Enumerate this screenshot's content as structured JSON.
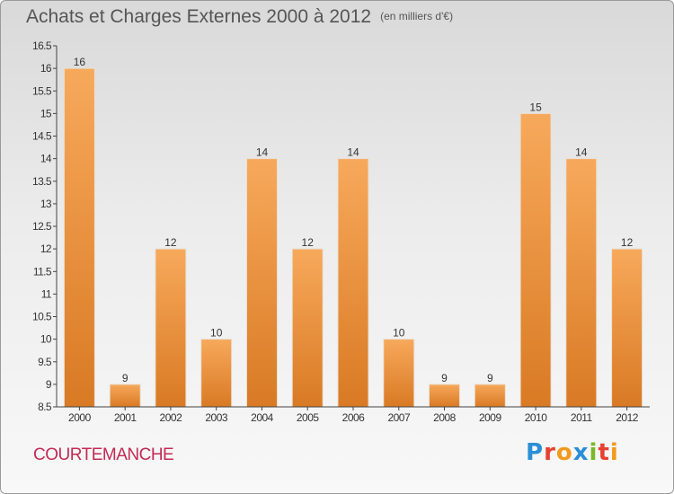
{
  "header": {
    "title": "Achats et Charges Externes 2000 à 2012",
    "unit": "(en milliers d'€)"
  },
  "footer": {
    "place": "COURTEMANCHE",
    "brand": "Proxiti",
    "brand_colors": [
      "#2a8fd6",
      "#e7412f",
      "#f29a1e",
      "#2a8fd6",
      "#7ab829",
      "#e7412f",
      "#f29a1e"
    ]
  },
  "colors": {
    "bar_light": "#f7a95b",
    "bar_dark": "#d97a24",
    "axis": "#444444",
    "label": "#333333"
  },
  "chart_data": {
    "type": "bar",
    "categories": [
      "2000",
      "2001",
      "2002",
      "2003",
      "2004",
      "2005",
      "2006",
      "2007",
      "2008",
      "2009",
      "2010",
      "2011",
      "2012"
    ],
    "values": [
      16,
      9,
      12,
      10,
      14,
      12,
      14,
      10,
      9,
      9,
      15,
      14,
      12
    ],
    "data_labels": [
      "16",
      "9",
      "12",
      "10",
      "14",
      "12",
      "14",
      "10",
      "9",
      "9",
      "15",
      "14",
      "12"
    ],
    "ylim": [
      8.5,
      16.5
    ],
    "yticks": [
      "8.5",
      "9",
      "9.5",
      "10",
      "10.5",
      "11",
      "11.5",
      "12",
      "12.5",
      "13",
      "13.5",
      "14",
      "14.5",
      "15",
      "15.5",
      "16",
      "16.5"
    ],
    "title": "Achats et Charges Externes 2000 à 2012",
    "unit": "(en milliers d'€)",
    "xlabel": "",
    "ylabel": "",
    "grid": false
  }
}
